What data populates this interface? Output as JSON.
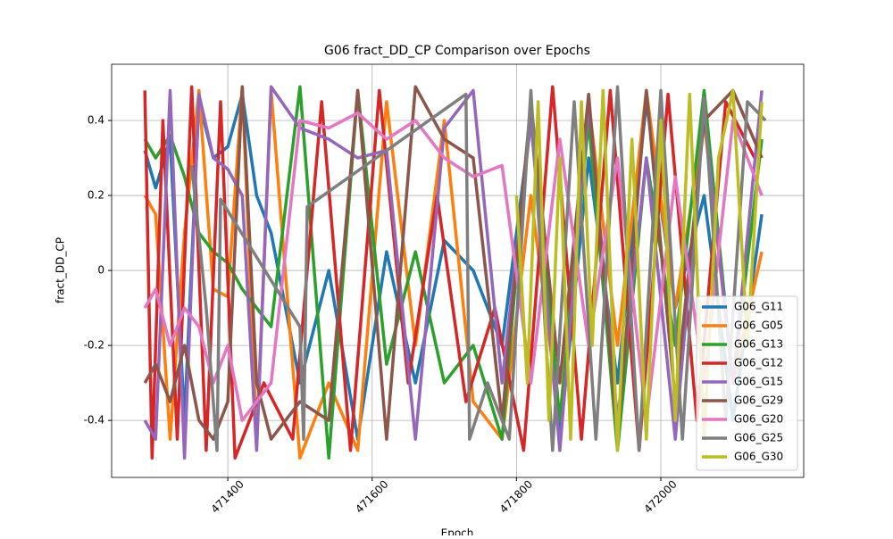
{
  "chart_data": {
    "type": "line",
    "title": "G06 fract_DD_CP Comparison over Epochs",
    "x_label": "Epoch",
    "y_label": "fract_DD_CP",
    "xlim": [
      471239,
      472198
    ],
    "ylim": [
      -0.552,
      0.55
    ],
    "xticks": [
      471400,
      471600,
      471800,
      472000
    ],
    "yticks": [
      -0.4,
      -0.2,
      0,
      0.2,
      0.4
    ],
    "grid": true,
    "legend": "lower right",
    "series": [
      {
        "name": "G06_G11",
        "color": "#1f77b4",
        "x": [
          471285,
          471300,
          471320,
          471340,
          471360,
          471380,
          471400,
          471420,
          471440,
          471460,
          471500,
          471540,
          471580,
          471620,
          471660,
          471700,
          471740,
          471780,
          471820,
          471860,
          471900,
          471940,
          471980,
          472020,
          472060,
          472100,
          472140
        ],
        "values": [
          0.32,
          0.22,
          0.35,
          -0.4,
          0.45,
          0.3,
          0.33,
          0.47,
          0.2,
          0.1,
          -0.3,
          0.0,
          -0.45,
          0.05,
          -0.3,
          0.08,
          0.0,
          -0.2,
          0.4,
          -0.45,
          0.3,
          -0.3,
          0.45,
          -0.1,
          0.2,
          -0.4,
          0.15
        ]
      },
      {
        "name": "G06_G05",
        "color": "#ff7f0e",
        "x": [
          471285,
          471300,
          471320,
          471340,
          471360,
          471380,
          471400,
          471420,
          471440,
          471460,
          471500,
          471540,
          471580,
          471620,
          471660,
          471700,
          471740,
          471780,
          471820,
          471860,
          471900,
          471940,
          471980,
          472020,
          472060,
          472100,
          472140
        ],
        "values": [
          0.2,
          0.15,
          -0.45,
          0.1,
          0.48,
          -0.05,
          -0.07,
          0.49,
          -0.45,
          0.48,
          -0.5,
          -0.3,
          -0.48,
          0.45,
          -0.2,
          0.4,
          -0.35,
          -0.45,
          0.2,
          -0.4,
          0.45,
          -0.2,
          0.48,
          -0.1,
          0.4,
          -0.3,
          0.05
        ]
      },
      {
        "name": "G06_G13",
        "color": "#2ca02c",
        "x": [
          471285,
          471300,
          471320,
          471340,
          471360,
          471380,
          471400,
          471420,
          471440,
          471460,
          471500,
          471540,
          471580,
          471620,
          471660,
          471700,
          471740,
          471780,
          471820,
          471860,
          471900,
          471940,
          471980,
          472020,
          472060,
          472100,
          472140
        ],
        "values": [
          0.35,
          0.3,
          0.36,
          0.25,
          0.1,
          0.05,
          0.02,
          -0.05,
          -0.1,
          -0.15,
          0.49,
          -0.5,
          0.48,
          -0.25,
          0.05,
          -0.3,
          -0.2,
          -0.45,
          0.45,
          -0.4,
          0.4,
          -0.48,
          0.3,
          -0.2,
          0.48,
          -0.3,
          0.35
        ]
      },
      {
        "name": "G06_G12",
        "color": "#d62728",
        "x": [
          471285,
          471295,
          471310,
          471330,
          471350,
          471370,
          471390,
          471410,
          471430,
          471450,
          471490,
          471530,
          471570,
          471610,
          471650,
          471690,
          471730,
          471770,
          471810,
          471850,
          471890,
          471930,
          471970,
          472010,
          472050,
          472090,
          472130
        ],
        "values": [
          0.48,
          -0.5,
          0.4,
          -0.45,
          0.49,
          -0.48,
          0.45,
          -0.5,
          -0.4,
          -0.3,
          -0.45,
          0.45,
          -0.48,
          0.48,
          -0.3,
          0.2,
          -0.35,
          -0.1,
          -0.48,
          0.49,
          -0.45,
          0.48,
          -0.48,
          0.47,
          -0.4,
          0.45,
          0.3
        ]
      },
      {
        "name": "G06_G15",
        "color": "#9467bd",
        "x": [
          471285,
          471300,
          471320,
          471340,
          471360,
          471380,
          471400,
          471420,
          471440,
          471460,
          471500,
          471540,
          471580,
          471620,
          471660,
          471700,
          471740,
          471780,
          471820,
          471860,
          471900,
          471940,
          471980,
          472020,
          472060,
          472100,
          472140
        ],
        "values": [
          -0.4,
          -0.45,
          0.48,
          -0.5,
          0.47,
          0.3,
          0.27,
          0.2,
          -0.48,
          0.49,
          0.38,
          0.35,
          0.3,
          0.32,
          -0.45,
          0.38,
          0.48,
          -0.3,
          0.4,
          -0.48,
          0.45,
          -0.4,
          0.3,
          -0.45,
          0.42,
          -0.3,
          0.48
        ]
      },
      {
        "name": "G06_G29",
        "color": "#8c564b",
        "x": [
          471285,
          471300,
          471320,
          471340,
          471360,
          471380,
          471400,
          471420,
          471440,
          471460,
          471500,
          471540,
          471580,
          471620,
          471660,
          471700,
          471740,
          471780,
          471820,
          471860,
          471900,
          471940,
          471980,
          472020,
          472060,
          472100,
          472140
        ],
        "values": [
          -0.3,
          -0.25,
          -0.35,
          -0.2,
          -0.4,
          -0.45,
          -0.35,
          0.49,
          -0.3,
          -0.45,
          -0.35,
          -0.4,
          0.48,
          -0.45,
          0.49,
          0.35,
          0.3,
          -0.4,
          0.45,
          -0.3,
          0.47,
          -0.45,
          0.48,
          -0.35,
          0.4,
          0.48,
          0.3
        ]
      },
      {
        "name": "G06_G20",
        "color": "#e377c2",
        "x": [
          471285,
          471300,
          471320,
          471340,
          471360,
          471380,
          471400,
          471420,
          471440,
          471460,
          471500,
          471540,
          471580,
          471620,
          471660,
          471700,
          471740,
          471780,
          471820,
          471860,
          471900,
          471940,
          471980,
          472020,
          472060,
          472100,
          472140
        ],
        "values": [
          -0.1,
          -0.05,
          -0.2,
          -0.1,
          -0.15,
          -0.3,
          -0.2,
          -0.4,
          -0.35,
          -0.3,
          0.4,
          0.38,
          0.42,
          0.35,
          0.4,
          0.3,
          0.25,
          0.28,
          -0.3,
          0.35,
          -0.2,
          0.3,
          -0.4,
          0.25,
          -0.3,
          0.4,
          0.2
        ]
      },
      {
        "name": "G06_G25",
        "color": "#7f7f7f",
        "x": [
          471350,
          471370,
          471385,
          471390,
          471500,
          471505,
          471510,
          471730,
          471735,
          471760,
          471790,
          471820,
          471850,
          471880,
          471910,
          471940,
          471970,
          472000,
          472030,
          472060,
          472090,
          472120,
          472145
        ],
        "values": [
          0.28,
          -0.1,
          -0.48,
          0.19,
          -0.15,
          -0.45,
          0.17,
          0.47,
          -0.45,
          -0.3,
          -0.45,
          0.48,
          -0.48,
          0.45,
          -0.45,
          0.49,
          -0.48,
          0.48,
          -0.45,
          0.46,
          -0.4,
          0.45,
          0.4
        ]
      },
      {
        "name": "G06_G30",
        "color": "#bcbd22",
        "x": [
          471800,
          471815,
          471830,
          471845,
          471860,
          471875,
          471890,
          471905,
          471920,
          471940,
          471960,
          471980,
          472000,
          472020,
          472040,
          472060,
          472080,
          472100,
          472120,
          472140
        ],
        "values": [
          0.2,
          -0.3,
          0.45,
          -0.4,
          0.3,
          -0.45,
          0.45,
          -0.2,
          0.48,
          -0.48,
          0.35,
          -0.45,
          0.4,
          -0.4,
          0.47,
          -0.45,
          0.3,
          0.48,
          -0.2,
          0.45
        ]
      }
    ]
  }
}
